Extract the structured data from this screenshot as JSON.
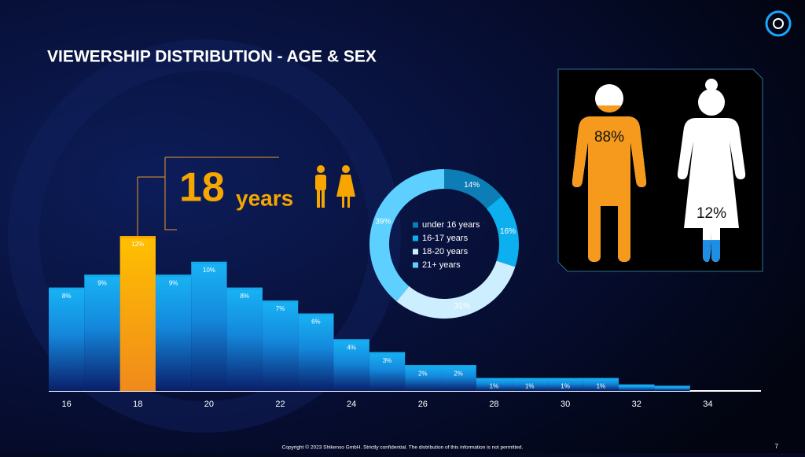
{
  "title": "VIEWERSHIP DISTRIBUTION - AGE & SEX",
  "footer": "Copyright  © 2023 Shikenso GmbH. Strictly confidential. The distribution of this information is not permitted.",
  "page_number": "7",
  "chart_data": [
    {
      "type": "bar",
      "x": [
        16,
        17,
        18,
        19,
        20,
        21,
        22,
        23,
        24,
        25,
        26,
        27,
        28,
        29,
        30,
        31,
        32,
        33
      ],
      "values": [
        8,
        9,
        12,
        9,
        10,
        8,
        7,
        6,
        4,
        3,
        2,
        2,
        1,
        1,
        1,
        1,
        0.5,
        0.4
      ],
      "value_labels": [
        "8%",
        "9%",
        "12%",
        "9%",
        "10%",
        "8%",
        "7%",
        "6%",
        "4%",
        "3%",
        "2%",
        "2%",
        "1%",
        "1%",
        "1%",
        "1%",
        null,
        null
      ],
      "xlim": [
        15.5,
        34.5
      ],
      "xticks": [
        16,
        18,
        20,
        22,
        24,
        26,
        28,
        30,
        32,
        34
      ],
      "ylim": [
        0,
        12
      ],
      "color": "#14a9ec",
      "highlight": {
        "x": 18,
        "color": "#f7a600"
      },
      "annotation": "18",
      "annotation_unit": "years"
    },
    {
      "type": "donut",
      "categories": [
        "under 16 years",
        "16-17 years",
        "18-20 years",
        "21+ years"
      ],
      "values": [
        14,
        16,
        31,
        39
      ],
      "value_labels": [
        "14%",
        "16%",
        "31%",
        "39%"
      ],
      "colors": [
        "#0d7db5",
        "#0db0ef",
        "#cdeeff",
        "#5dd0ff"
      ]
    },
    {
      "type": "pictogram",
      "values": [
        88,
        12
      ],
      "value_labels": [
        "88%",
        "12%"
      ],
      "colors": [
        "#f59a1c",
        "#1f8fe6"
      ]
    }
  ]
}
